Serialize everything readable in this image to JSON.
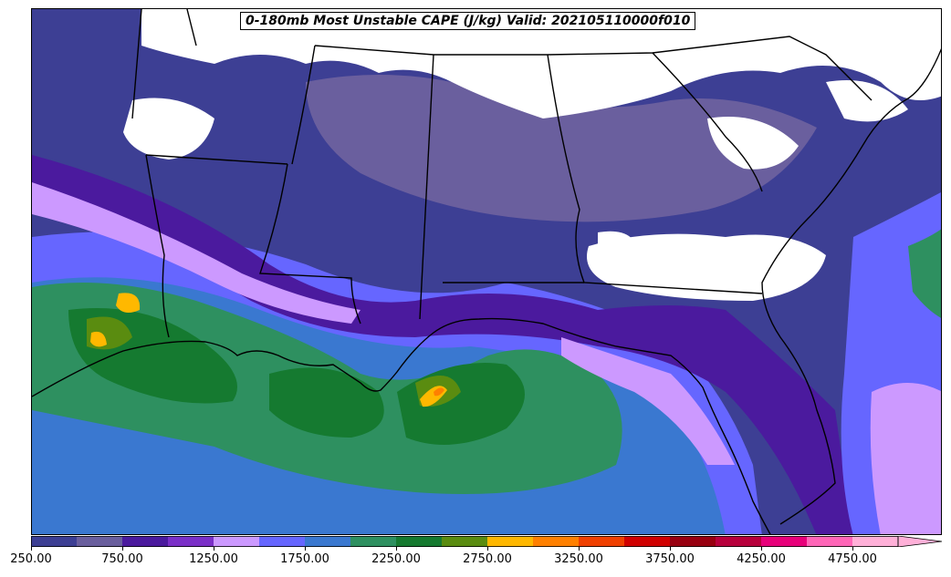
{
  "title": "0-180mb Most Unstable CAPE (J/kg) Valid: 202105110000f010",
  "colorbar": {
    "min": 250,
    "max": 5000,
    "step": 250,
    "extend": "max",
    "tick_labels": [
      "250.00",
      "750.00",
      "1250.00",
      "1750.00",
      "2250.00",
      "2750.00",
      "3250.00",
      "3750.00",
      "4250.00",
      "4750.00"
    ],
    "colors": [
      "#3d3f94",
      "#6a5f9e",
      "#4b1a9e",
      "#7b2fc8",
      "#cc99ff",
      "#6666ff",
      "#3a78d0",
      "#2e9060",
      "#157a30",
      "#5a8c10",
      "#ffb800",
      "#ff8000",
      "#f04000",
      "#d00000",
      "#980010",
      "#b8003c",
      "#e8007a",
      "#ff66b8",
      "#ffb0d8"
    ]
  },
  "map": {
    "region": "Southeastern United States and Gulf of Mexico",
    "colors": {
      "land_none": "#ffffff",
      "border": "#000000"
    }
  }
}
